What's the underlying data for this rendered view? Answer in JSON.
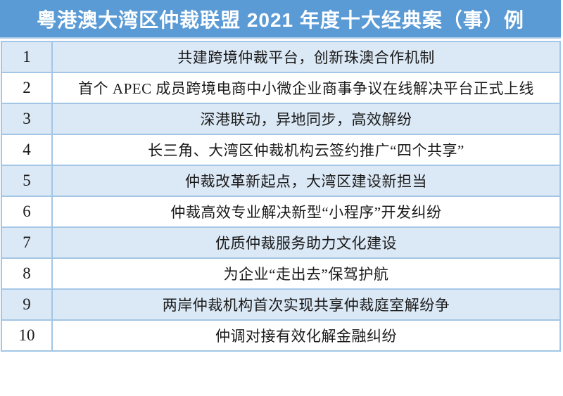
{
  "header": {
    "title": "粤港澳大湾区仲裁联盟 2021 年度十大经典案（事）例"
  },
  "table": {
    "rows": [
      {
        "num": "1",
        "title": "共建跨境仲裁平台，创新珠澳合作机制"
      },
      {
        "num": "2",
        "title": "首个 APEC 成员跨境电商中小微企业商事争议在线解决平台正式上线"
      },
      {
        "num": "3",
        "title": "深港联动，异地同步，高效解纷"
      },
      {
        "num": "4",
        "title": "长三角、大湾区仲裁机构云签约推广“四个共享”"
      },
      {
        "num": "5",
        "title": "仲裁改革新起点，大湾区建设新担当"
      },
      {
        "num": "6",
        "title": "仲裁高效专业解决新型“小程序”开发纠纷"
      },
      {
        "num": "7",
        "title": "优质仲裁服务助力文化建设"
      },
      {
        "num": "8",
        "title": "为企业“走出去”保驾护航"
      },
      {
        "num": "9",
        "title": "两岸仲裁机构首次实现共享仲裁庭室解纷争"
      },
      {
        "num": "10",
        "title": "仲调对接有效化解金融纠纷"
      }
    ]
  },
  "colors": {
    "header_bg": "#5b9bd5",
    "header_text": "#ffffff",
    "row_alt_bg": "#dbe8f5",
    "row_bg": "#ffffff",
    "border": "#a3c6e6",
    "body_text": "#1a1a1a"
  }
}
